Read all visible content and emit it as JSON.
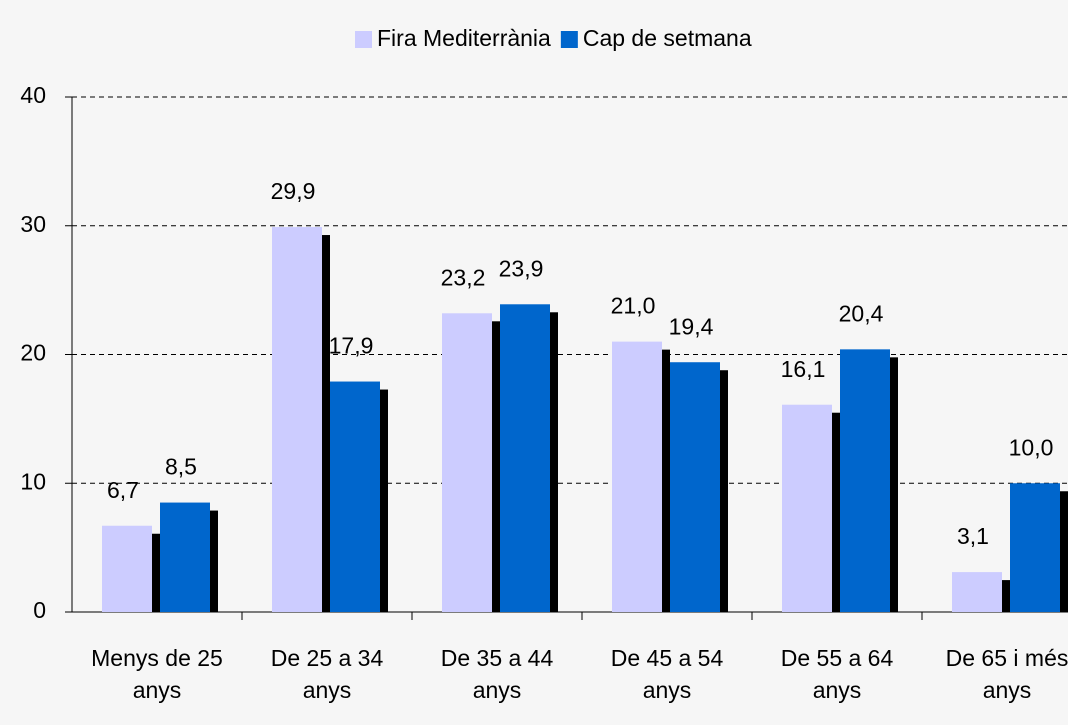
{
  "chart_data": {
    "type": "bar",
    "categories": [
      "Menys de 25 anys",
      "De 25 a 34 anys",
      "De 35 a 44 anys",
      "De 45 a 54 anys",
      "De 55 a 64 anys",
      "De 65 i més anys"
    ],
    "series": [
      {
        "name": "Fira Mediterrània",
        "color": "#ccccff",
        "values": [
          6.7,
          29.9,
          23.2,
          21.0,
          16.1,
          3.1
        ],
        "value_labels": [
          "6,7",
          "29,9",
          "23,2",
          "21,0",
          "16,1",
          "3,1"
        ]
      },
      {
        "name": "Cap de setmana",
        "color": "#0066cc",
        "values": [
          8.5,
          17.9,
          23.9,
          19.4,
          20.4,
          10.0
        ],
        "value_labels": [
          "8,5",
          "17,9",
          "23,9",
          "19,4",
          "20,4",
          "10,0"
        ]
      }
    ],
    "ylim": [
      0,
      40
    ],
    "yticks": [
      0,
      10,
      20,
      30,
      40
    ],
    "grid": true
  }
}
